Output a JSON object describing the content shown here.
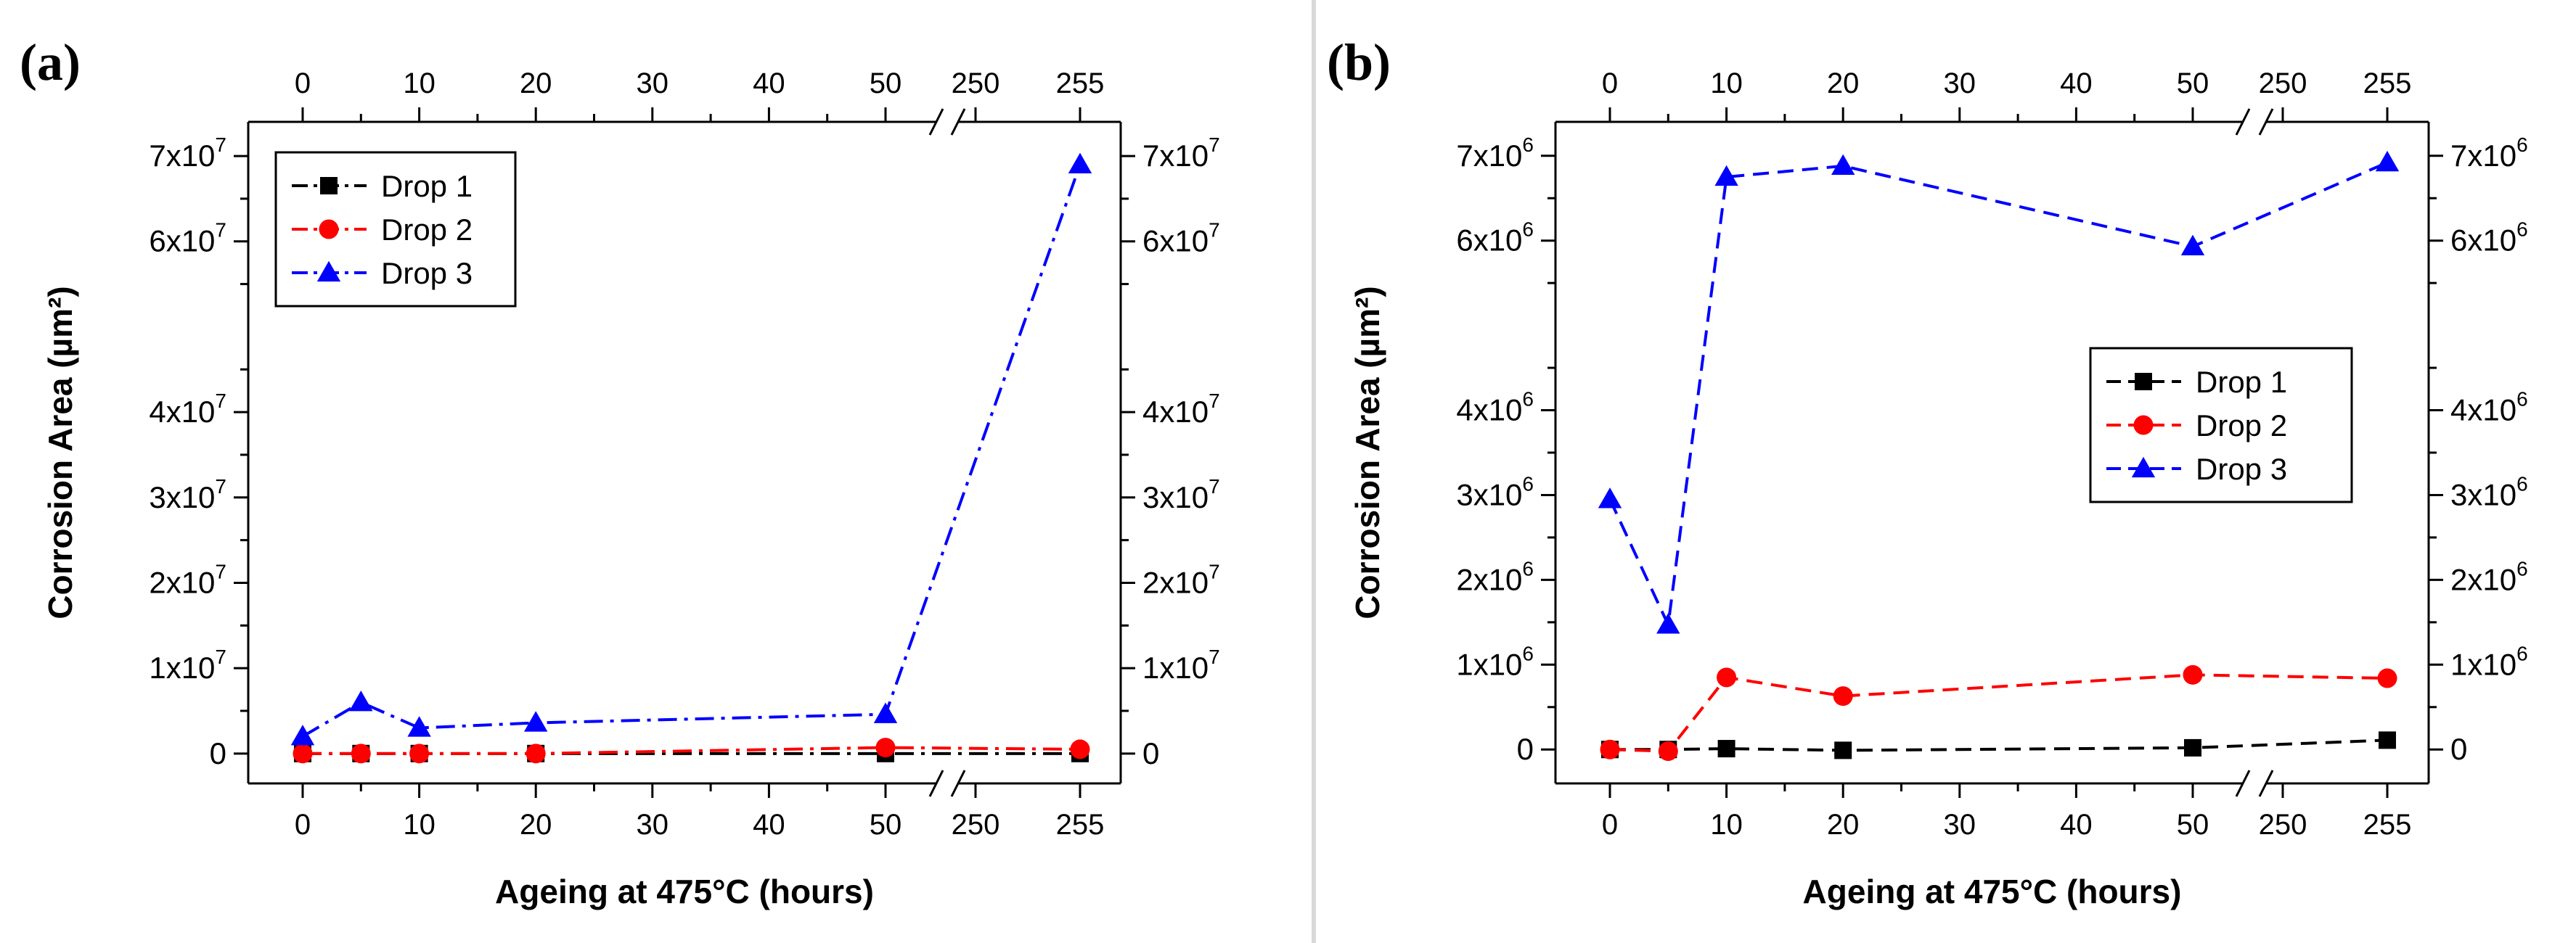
{
  "figure": {
    "divider_color": "#d9d9d9"
  },
  "chart_data": [
    {
      "panel_label": "(a)",
      "type": "line",
      "xlabel": "Ageing at 475°C (hours)",
      "ylabel": "Corrosion Area (µm²)",
      "x_break": {
        "before": 50,
        "after": 250
      },
      "x_ticks_left": [
        "0",
        "10",
        "20",
        "30",
        "40",
        "50"
      ],
      "x_ticks_right": [
        "250",
        "255"
      ],
      "y_ticks": [
        {
          "value": 0,
          "mant": "0",
          "exp": ""
        },
        {
          "value": 10000000,
          "mant": "1x10",
          "exp": "7"
        },
        {
          "value": 20000000,
          "mant": "2x10",
          "exp": "7"
        },
        {
          "value": 30000000,
          "mant": "3x10",
          "exp": "7"
        },
        {
          "value": 40000000,
          "mant": "4x10",
          "exp": "7"
        },
        {
          "value": 60000000,
          "mant": "6x10",
          "exp": "7"
        },
        {
          "value": 70000000,
          "mant": "7x10",
          "exp": "7"
        }
      ],
      "ylim": [
        -3500000,
        74000000
      ],
      "line_style": "dashdot",
      "legend_position": "top-left",
      "x": [
        0,
        5,
        10,
        20,
        50,
        255
      ],
      "series": [
        {
          "name": "Drop 1",
          "color": "#000000",
          "marker": "square",
          "values": [
            0,
            0,
            0,
            0,
            0,
            0
          ]
        },
        {
          "name": "Drop 2",
          "color": "#ff0000",
          "marker": "circle",
          "values": [
            0,
            0,
            0,
            0,
            700000,
            500000
          ]
        },
        {
          "name": "Drop 3",
          "color": "#0000ff",
          "marker": "triangle",
          "values": [
            2000000,
            6000000,
            3000000,
            3600000,
            4600000,
            69000000
          ]
        }
      ]
    },
    {
      "panel_label": "(b)",
      "type": "line",
      "xlabel": "Ageing at 475°C (hours)",
      "ylabel": "Corrosion Area (µm²)",
      "x_break": {
        "before": 50,
        "after": 250
      },
      "x_ticks_left": [
        "0",
        "10",
        "20",
        "30",
        "40",
        "50"
      ],
      "x_ticks_right": [
        "250",
        "255"
      ],
      "y_ticks": [
        {
          "value": 0,
          "mant": "0",
          "exp": ""
        },
        {
          "value": 1000000,
          "mant": "1x10",
          "exp": "6"
        },
        {
          "value": 2000000,
          "mant": "2x10",
          "exp": "6"
        },
        {
          "value": 3000000,
          "mant": "3x10",
          "exp": "6"
        },
        {
          "value": 4000000,
          "mant": "4x10",
          "exp": "6"
        },
        {
          "value": 6000000,
          "mant": "6x10",
          "exp": "6"
        },
        {
          "value": 7000000,
          "mant": "7x10",
          "exp": "6"
        }
      ],
      "ylim": [
        -400000,
        7400000
      ],
      "line_style": "dashed",
      "legend_position": "center-right",
      "x": [
        0,
        5,
        10,
        20,
        50,
        255
      ],
      "series": [
        {
          "name": "Drop 1",
          "color": "#000000",
          "marker": "square",
          "values": [
            0,
            0,
            10000,
            -10000,
            20000,
            110000
          ]
        },
        {
          "name": "Drop 2",
          "color": "#ff0000",
          "marker": "circle",
          "values": [
            0,
            -20000,
            850000,
            630000,
            880000,
            840000
          ]
        },
        {
          "name": "Drop 3",
          "color": "#0000ff",
          "marker": "triangle",
          "values": [
            2950000,
            1470000,
            6750000,
            6880000,
            5930000,
            6920000
          ]
        }
      ]
    }
  ]
}
